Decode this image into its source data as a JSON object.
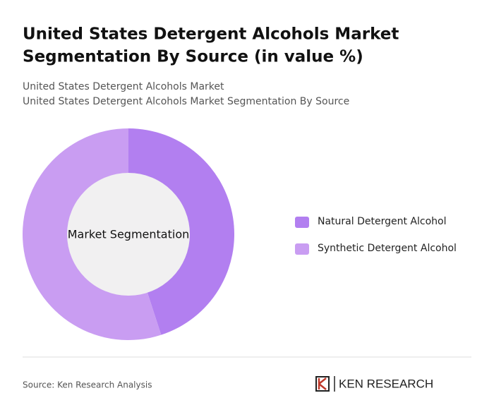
{
  "chart_data": {
    "type": "donut",
    "title": [
      "United States Detergent Alcohols Market",
      "Segmentation By Source (in value %)"
    ],
    "subtitle": [
      "United States Detergent Alcohols Market",
      "United States Detergent Alcohols Market Segmentation By Source"
    ],
    "center_label": "Market Segmentation",
    "categories": [
      "Natural Detergent Alcohol",
      "Synthetic Detergent Alcohol"
    ],
    "values": [
      45,
      55
    ],
    "colors": [
      "#b27ff0",
      "#c99df2"
    ],
    "legend": "right"
  },
  "footer": {
    "source": "Source: Ken Research Analysis",
    "brand": "KEN RESEARCH"
  }
}
